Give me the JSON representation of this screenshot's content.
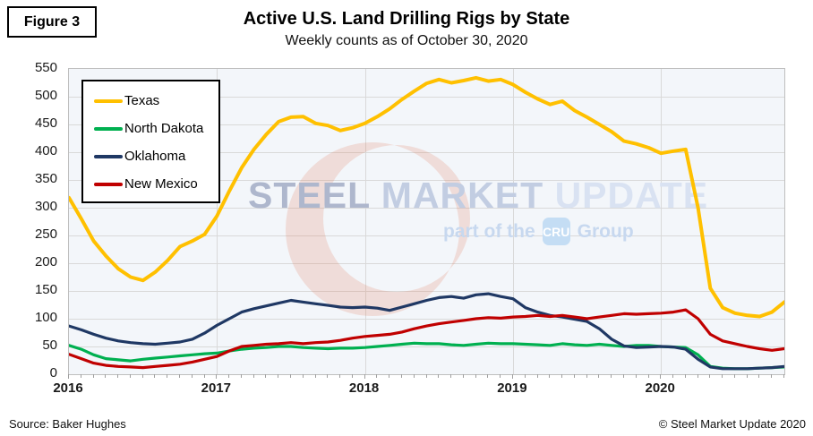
{
  "figure_label": "Figure 3",
  "title": "Active U.S. Land Drilling Rigs by State",
  "subtitle": "Weekly counts as of October 30, 2020",
  "source": "Source: Baker Hughes",
  "copyright": "© Steel Market Update 2020",
  "watermark": {
    "word1": "STEEL",
    "word2": "MARKET",
    "word3": "UPDATE",
    "tagline_prefix": "part of the",
    "cru_badge": "CRU",
    "tagline_suffix": "Group",
    "crescent_color": "#e06a45"
  },
  "colors": {
    "grid": "#d9d9d9",
    "plot_border": "#bfbfbf",
    "plot_background": "#f3f6fa",
    "texas": "#FFC000",
    "north_dakota": "#00B050",
    "oklahoma": "#1F3864",
    "new_mexico": "#C00000"
  },
  "chart_data": {
    "type": "line",
    "title": "Active U.S. Land Drilling Rigs by State",
    "subtitle": "Weekly counts as of October 30, 2020",
    "xlabel": "",
    "ylabel": "",
    "x_unit": "monthly points, Jan 2016 through end of October 2020",
    "x_tick_labels": [
      "2016",
      "2017",
      "2018",
      "2019",
      "2020"
    ],
    "y_tick_labels": [
      "0",
      "50",
      "100",
      "150",
      "200",
      "250",
      "300",
      "350",
      "400",
      "450",
      "500",
      "550"
    ],
    "ylim": [
      0,
      550
    ],
    "grid": true,
    "legend_position": "top-left",
    "series": [
      {
        "name": "Texas",
        "color": "#FFC000",
        "values": [
          318,
          280,
          240,
          213,
          190,
          175,
          169,
          184,
          205,
          230,
          240,
          252,
          285,
          330,
          372,
          405,
          432,
          455,
          463,
          464,
          452,
          448,
          439,
          444,
          452,
          464,
          478,
          495,
          510,
          524,
          531,
          525,
          529,
          534,
          528,
          531,
          522,
          508,
          496,
          486,
          492,
          475,
          463,
          450,
          437,
          420,
          415,
          408,
          398,
          402,
          405,
          300,
          155,
          120,
          110,
          106,
          104,
          112,
          130
        ]
      },
      {
        "name": "North Dakota",
        "color": "#00B050",
        "values": [
          52,
          45,
          35,
          28,
          26,
          24,
          27,
          29,
          31,
          33,
          35,
          37,
          38,
          42,
          45,
          47,
          48,
          50,
          50,
          48,
          47,
          46,
          47,
          47,
          48,
          50,
          52,
          54,
          56,
          55,
          55,
          53,
          52,
          54,
          56,
          55,
          55,
          54,
          53,
          52,
          55,
          53,
          52,
          54,
          52,
          50,
          52,
          52,
          50,
          49,
          48,
          35,
          14,
          11,
          10,
          10,
          11,
          12,
          13
        ]
      },
      {
        "name": "Oklahoma",
        "color": "#1F3864",
        "values": [
          87,
          80,
          72,
          65,
          60,
          57,
          55,
          54,
          56,
          58,
          63,
          74,
          88,
          100,
          112,
          118,
          123,
          128,
          133,
          130,
          127,
          124,
          121,
          120,
          121,
          119,
          115,
          121,
          127,
          133,
          138,
          140,
          137,
          143,
          145,
          140,
          136,
          120,
          112,
          106,
          103,
          99,
          95,
          82,
          63,
          51,
          48,
          49,
          50,
          49,
          45,
          27,
          13,
          10,
          10,
          10,
          11,
          12,
          14
        ]
      },
      {
        "name": "New Mexico",
        "color": "#C00000",
        "values": [
          36,
          28,
          20,
          16,
          14,
          13,
          12,
          14,
          16,
          18,
          22,
          27,
          32,
          42,
          50,
          52,
          54,
          55,
          57,
          55,
          57,
          58,
          61,
          65,
          68,
          70,
          72,
          76,
          82,
          87,
          91,
          94,
          97,
          100,
          102,
          101,
          103,
          104,
          106,
          104,
          106,
          103,
          100,
          103,
          106,
          109,
          108,
          109,
          110,
          112,
          116,
          100,
          72,
          60,
          55,
          50,
          46,
          43,
          46
        ]
      }
    ]
  }
}
